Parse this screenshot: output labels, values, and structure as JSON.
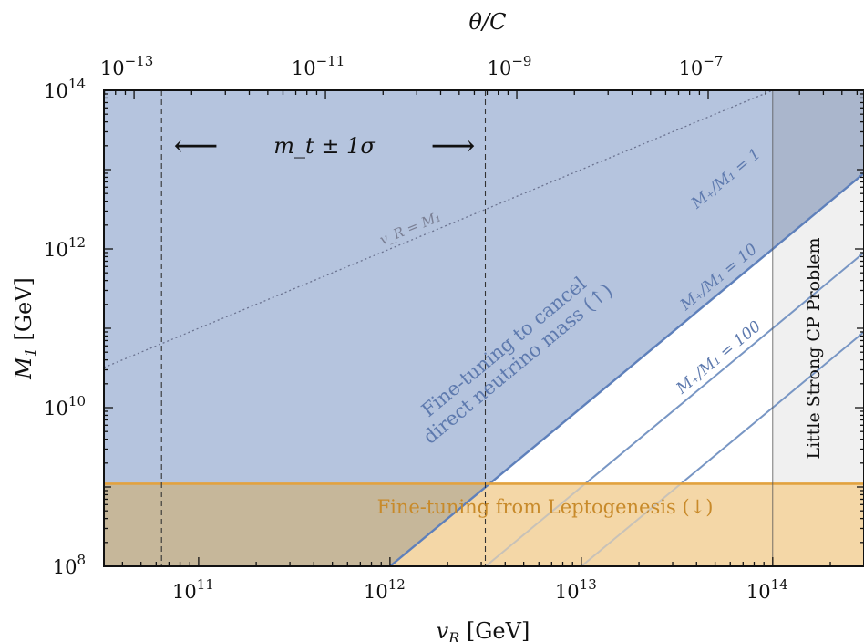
{
  "chart_data": {
    "type": "area",
    "xlabel": {
      "var": "v",
      "sub": "R",
      "unit": "[GeV]"
    },
    "ylabel": {
      "var": "M",
      "sub": "1",
      "unit": "[GeV]"
    },
    "top_xlabel": "θ/C",
    "xlim": [
      32000000000.0,
      300000000000000.0
    ],
    "ylim": [
      100000000.0,
      100000000000000.0
    ],
    "xscale": "log",
    "yscale": "log",
    "x_ticks": [
      {
        "value": 100000000000.0,
        "label": "10",
        "exp": "11"
      },
      {
        "value": 1000000000000.0,
        "label": "10",
        "exp": "12"
      },
      {
        "value": 10000000000000.0,
        "label": "10",
        "exp": "13"
      },
      {
        "value": 100000000000000.0,
        "label": "10",
        "exp": "14"
      }
    ],
    "y_ticks": [
      {
        "value": 100000000.0,
        "label": "10",
        "exp": "8"
      },
      {
        "value": 10000000000.0,
        "label": "10",
        "exp": "10"
      },
      {
        "value": 1000000000000.0,
        "label": "10",
        "exp": "12"
      },
      {
        "value": 100000000000000.0,
        "label": "10",
        "exp": "14"
      }
    ],
    "top_ticks": [
      {
        "value_vR": 46000000000.0,
        "label": "10",
        "exp": "−13"
      },
      {
        "value_vR": 460000000000.0,
        "label": "10",
        "exp": "−11"
      },
      {
        "value_vR": 4600000000000.0,
        "label": "10",
        "exp": "−9"
      },
      {
        "value_vR": 46000000000000.0,
        "label": "10",
        "exp": "−7"
      }
    ],
    "regions": [
      {
        "name": "direct-neutrino-fine-tuning",
        "description": "M1 > vR^2 / 1e16",
        "color": "#b5c4de"
      },
      {
        "name": "leptogenesis-fine-tuning",
        "y_max": 1100000000.0,
        "color": "#f4d7a7"
      },
      {
        "name": "little-strong-cp",
        "x_min": 100000000000000.0,
        "color": "#f0f0f0"
      }
    ],
    "lines": [
      {
        "name": "M+/M1=1",
        "label": "M₊/M₁ = 1",
        "coef": 1e-16,
        "color": "#5e80bb"
      },
      {
        "name": "M+/M1=10",
        "label": "M₊/M₁ = 10",
        "coef": 1e-17,
        "color": "#7896c4"
      },
      {
        "name": "M+/M1=100",
        "label": "M₊/M₁ = 100",
        "coef": 1e-18,
        "color": "#7896c4"
      },
      {
        "name": "vR=M1",
        "label": "v_R = M₁",
        "coef": 1,
        "power": 1,
        "color": "#6b7390"
      }
    ],
    "leptogenesis_bound": 1100000000.0,
    "strong_cp_bound": 100000000000000.0,
    "top_mass_band": {
      "lower": 64000000000.0,
      "upper": 3150000000000.0,
      "label": "m_t ± 1σ"
    },
    "annotations": {
      "direct_neutrino": {
        "line1": "Fine-tuning to cancel",
        "line2": "direct neutrino mass (↑)"
      },
      "leptogenesis": "Fine-tuning from Leptogenesis (↓)",
      "strong_cp": "Little Strong CP Problem",
      "arrow_left": "⟵",
      "arrow_right": "⟶"
    },
    "colors": {
      "blue_fill": "#b5c4de",
      "orange_fill": "#f4d7a7",
      "overlap_fill": "#c6b79a",
      "gray_fill": "#f0f0f0",
      "overlap_gray": "#aab6cc",
      "blue_line": "#5e80bb",
      "orange_line": "#e2a23f",
      "orange_text": "#c88a2a"
    }
  }
}
